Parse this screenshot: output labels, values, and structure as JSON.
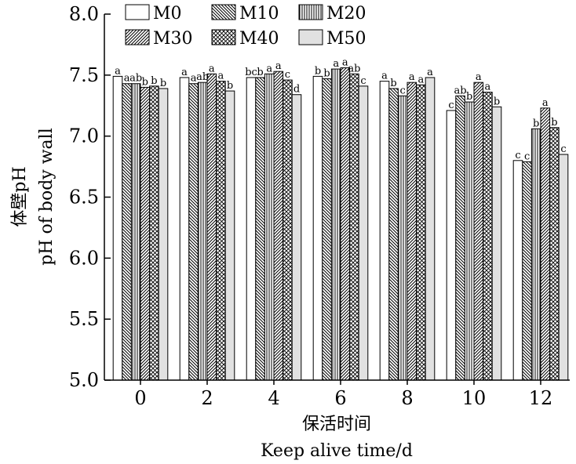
{
  "chart_data": {
    "type": "bar",
    "xlabel_cn": "保活时间",
    "xlabel": "Keep alive time/d",
    "ylabel_cn": "体壁pH",
    "ylabel": "pH of body wall",
    "ylim": [
      5.0,
      8.0
    ],
    "yticks": [
      "5.0",
      "5.5",
      "6.0",
      "6.5",
      "7.0",
      "7.5",
      "8.0"
    ],
    "categories": [
      "0",
      "2",
      "4",
      "6",
      "8",
      "10",
      "12"
    ],
    "legend_position": "top",
    "series": [
      {
        "name": "M0",
        "pattern": "white",
        "values": [
          7.49,
          7.48,
          7.48,
          7.49,
          7.45,
          7.21,
          6.8
        ],
        "labels": [
          "a",
          "a",
          "bc",
          "b",
          "a",
          "c",
          "c"
        ]
      },
      {
        "name": "M10",
        "pattern": "back-diagonal",
        "values": [
          7.43,
          7.43,
          7.48,
          7.47,
          7.39,
          7.33,
          6.79
        ],
        "labels": [
          "a",
          "a",
          "b",
          "b",
          "b",
          "ab",
          "c"
        ]
      },
      {
        "name": "M20",
        "pattern": "vertical",
        "values": [
          7.43,
          7.44,
          7.51,
          7.55,
          7.33,
          7.28,
          7.06
        ],
        "labels": [
          "ab",
          "ab",
          "a",
          "a",
          "c",
          "b",
          "b"
        ]
      },
      {
        "name": "M30",
        "pattern": "forward-diagonal",
        "values": [
          7.4,
          7.51,
          7.53,
          7.56,
          7.44,
          7.44,
          7.23
        ],
        "labels": [
          "b",
          "a",
          "a",
          "a",
          "a",
          "a",
          "a"
        ]
      },
      {
        "name": "M40",
        "pattern": "crosshatch",
        "values": [
          7.41,
          7.45,
          7.46,
          7.51,
          7.42,
          7.36,
          7.07
        ],
        "labels": [
          "b",
          "a",
          "c",
          "ab",
          "a",
          "a",
          "b"
        ]
      },
      {
        "name": "M50",
        "pattern": "gray",
        "values": [
          7.39,
          7.37,
          7.34,
          7.41,
          7.48,
          7.24,
          6.85
        ],
        "labels": [
          "b",
          "b",
          "d",
          "c",
          "a",
          "b",
          "c"
        ]
      }
    ]
  }
}
